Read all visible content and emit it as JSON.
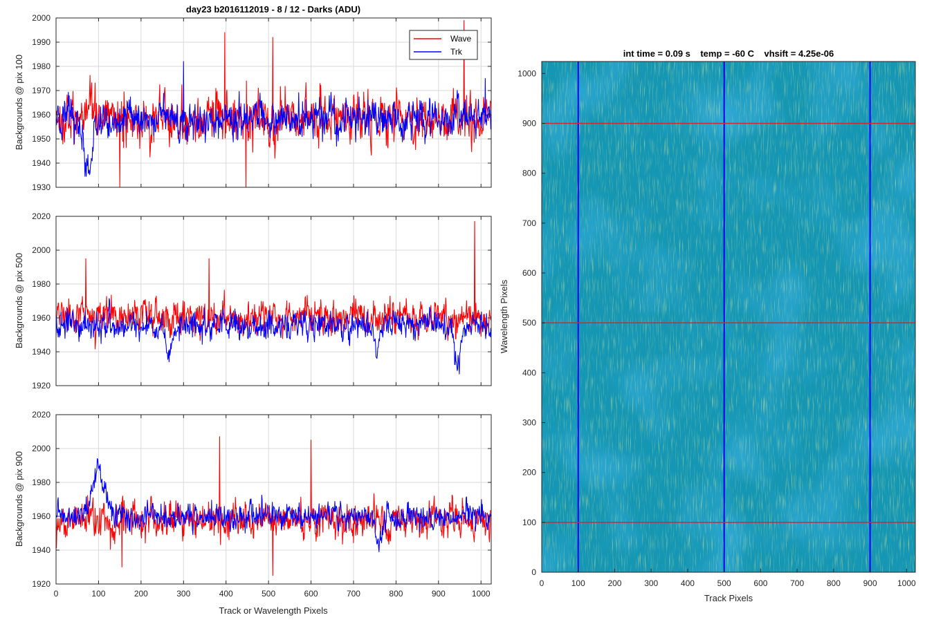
{
  "figure_title": "day23 b2016112019 - 8 / 12 - Darks (ADU)",
  "colors": {
    "wave": "#ff0000",
    "trk": "#0000ff",
    "grid": "#d9d9d9",
    "axis": "#262626"
  },
  "chart_data": [
    {
      "type": "line",
      "title": "day23 b2016112019 - 8 / 12 - Darks (ADU)",
      "xlabel": "",
      "ylabel": "Backgrounds @ pix 100",
      "xlim": [
        0,
        1024
      ],
      "ylim": [
        1930,
        2000
      ],
      "xticks": [
        0,
        100,
        200,
        300,
        400,
        500,
        600,
        700,
        800,
        900,
        1000
      ],
      "xtick_labels_shown": false,
      "yticks": [
        1930,
        1940,
        1950,
        1960,
        1970,
        1980,
        1990,
        2000
      ],
      "grid": true,
      "legend": {
        "location": "top-right",
        "entries": [
          "Wave",
          "Trk"
        ]
      },
      "series": [
        {
          "name": "Wave",
          "color": "#ff0000",
          "mean": 1958,
          "noise": 8,
          "features": [
            {
              "x": 960,
              "y": 1999
            },
            {
              "x": 397,
              "y": 1994
            },
            {
              "x": 150,
              "y": 1930
            },
            {
              "x": 447,
              "y": 1930
            },
            {
              "x": 510,
              "y": 1992
            }
          ]
        },
        {
          "name": "Trk",
          "color": "#0000ff",
          "mean": 1958,
          "noise": 6,
          "features": [
            {
              "x": 75,
              "y": 1934,
              "width": 15
            },
            {
              "x": 300,
              "y": 1982
            },
            {
              "x": 1010,
              "y": 1975
            }
          ]
        }
      ]
    },
    {
      "type": "line",
      "xlabel": "",
      "ylabel": "Backgrounds @ pix 500",
      "xlim": [
        0,
        1024
      ],
      "ylim": [
        1920,
        2020
      ],
      "xticks": [
        0,
        100,
        200,
        300,
        400,
        500,
        600,
        700,
        800,
        900,
        1000
      ],
      "xtick_labels_shown": false,
      "yticks": [
        1920,
        1940,
        1960,
        1980,
        2000,
        2020
      ],
      "grid": true,
      "series": [
        {
          "name": "Wave",
          "color": "#ff0000",
          "mean": 1960,
          "noise": 8,
          "features": [
            {
              "x": 985,
              "y": 2017
            },
            {
              "x": 70,
              "y": 1995
            },
            {
              "x": 360,
              "y": 1995
            }
          ]
        },
        {
          "name": "Trk",
          "color": "#0000ff",
          "mean": 1955,
          "noise": 6,
          "features": [
            {
              "x": 265,
              "y": 1932,
              "width": 12
            },
            {
              "x": 945,
              "y": 1928,
              "width": 10
            },
            {
              "x": 755,
              "y": 1933,
              "width": 6
            }
          ]
        }
      ]
    },
    {
      "type": "line",
      "xlabel": "Track or Wavelength Pixels",
      "ylabel": "Backgrounds @ pix 900",
      "xlim": [
        0,
        1024
      ],
      "ylim": [
        1920,
        2020
      ],
      "xticks": [
        0,
        100,
        200,
        300,
        400,
        500,
        600,
        700,
        800,
        900,
        1000
      ],
      "xtick_labels_shown": true,
      "yticks": [
        1920,
        1940,
        1960,
        1980,
        2000,
        2020
      ],
      "grid": true,
      "series": [
        {
          "name": "Wave",
          "color": "#ff0000",
          "mean": 1958,
          "noise": 8,
          "features": [
            {
              "x": 385,
              "y": 2007
            },
            {
              "x": 600,
              "y": 2005
            },
            {
              "x": 510,
              "y": 1925
            },
            {
              "x": 155,
              "y": 1930
            }
          ]
        },
        {
          "name": "Trk",
          "color": "#0000ff",
          "mean": 1960,
          "noise": 6,
          "features": [
            {
              "x": 100,
              "y": 1994,
              "width": 22
            },
            {
              "x": 760,
              "y": 1942,
              "width": 8
            }
          ]
        }
      ]
    },
    {
      "type": "heatmap",
      "title": "int time = 0.09 s    temp = -60 C    vhsift = 4.25e-06",
      "xlabel": "Track Pixels",
      "ylabel": "Wavelength Pixels",
      "xlim": [
        0,
        1024
      ],
      "ylim": [
        0,
        1024
      ],
      "xticks": [
        0,
        100,
        200,
        300,
        400,
        500,
        600,
        700,
        800,
        900,
        1000
      ],
      "yticks": [
        0,
        100,
        200,
        300,
        400,
        500,
        600,
        700,
        800,
        900,
        1000
      ],
      "colormap": "parula",
      "grid": false,
      "overlay_lines": {
        "horizontal_red_at": [
          100,
          500,
          900
        ],
        "vertical_blue_at": [
          100,
          500,
          900
        ]
      }
    }
  ]
}
